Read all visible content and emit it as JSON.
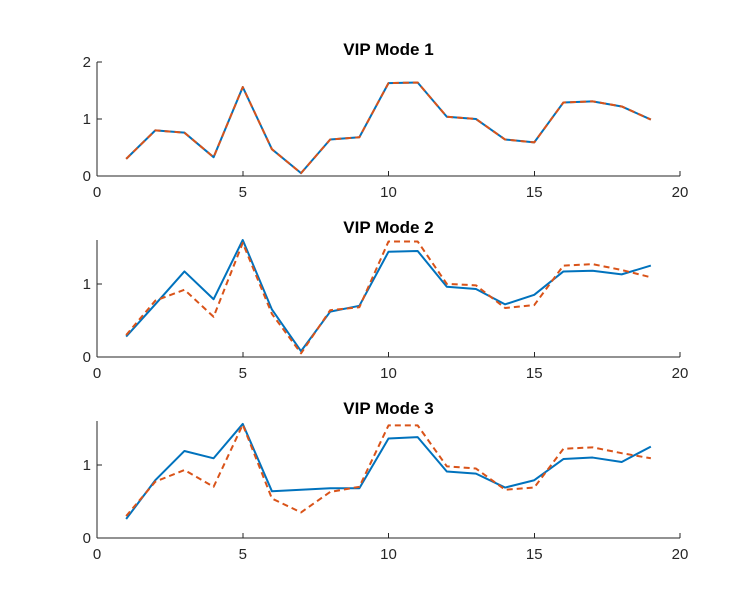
{
  "chart_data": [
    {
      "type": "line",
      "title": "VIP Mode 1",
      "xlim": [
        0,
        20
      ],
      "ylim": [
        0,
        2
      ],
      "xticks": [
        0,
        5,
        10,
        15,
        20
      ],
      "yticks": [
        0,
        1,
        2
      ],
      "x": [
        1,
        2,
        3,
        4,
        5,
        6,
        7,
        8,
        9,
        10,
        11,
        12,
        13,
        14,
        15,
        16,
        17,
        18,
        19
      ],
      "series": [
        {
          "style": "solid",
          "color": "#0072BD",
          "values": [
            0.3,
            0.8,
            0.76,
            0.33,
            1.56,
            0.47,
            0.05,
            0.64,
            0.68,
            1.63,
            1.64,
            1.04,
            1.0,
            0.64,
            0.59,
            1.29,
            1.31,
            1.22,
            0.99
          ]
        },
        {
          "style": "dashed",
          "color": "#D95319",
          "values": [
            0.3,
            0.8,
            0.76,
            0.33,
            1.56,
            0.47,
            0.05,
            0.64,
            0.68,
            1.63,
            1.64,
            1.04,
            1.0,
            0.64,
            0.59,
            1.29,
            1.31,
            1.22,
            0.99
          ]
        }
      ]
    },
    {
      "type": "line",
      "title": "VIP Mode 2",
      "xlim": [
        0,
        20
      ],
      "ylim": [
        0,
        1.6
      ],
      "xticks": [
        0,
        5,
        10,
        15,
        20
      ],
      "yticks": [
        0,
        1
      ],
      "x": [
        1,
        2,
        3,
        4,
        5,
        6,
        7,
        8,
        9,
        10,
        11,
        12,
        13,
        14,
        15,
        16,
        17,
        18,
        19
      ],
      "series": [
        {
          "style": "solid",
          "color": "#0072BD",
          "values": [
            0.28,
            0.72,
            1.17,
            0.79,
            1.6,
            0.65,
            0.08,
            0.62,
            0.7,
            1.44,
            1.45,
            0.96,
            0.93,
            0.72,
            0.85,
            1.17,
            1.18,
            1.13,
            1.25
          ]
        },
        {
          "style": "dashed",
          "color": "#D95319",
          "values": [
            0.3,
            0.77,
            0.92,
            0.55,
            1.56,
            0.59,
            0.05,
            0.64,
            0.68,
            1.58,
            1.58,
            1.0,
            0.98,
            0.67,
            0.71,
            1.25,
            1.27,
            1.19,
            1.09
          ]
        }
      ]
    },
    {
      "type": "line",
      "title": "VIP Mode 3",
      "xlim": [
        0,
        20
      ],
      "ylim": [
        0,
        1.6
      ],
      "xticks": [
        0,
        5,
        10,
        15,
        20
      ],
      "yticks": [
        0,
        1
      ],
      "x": [
        1,
        2,
        3,
        4,
        5,
        6,
        7,
        8,
        9,
        10,
        11,
        12,
        13,
        14,
        15,
        16,
        17,
        18,
        19
      ],
      "series": [
        {
          "style": "solid",
          "color": "#0072BD",
          "values": [
            0.26,
            0.79,
            1.19,
            1.09,
            1.56,
            0.64,
            0.66,
            0.68,
            0.68,
            1.36,
            1.38,
            0.91,
            0.88,
            0.69,
            0.79,
            1.08,
            1.1,
            1.04,
            1.25
          ]
        },
        {
          "style": "dashed",
          "color": "#D95319",
          "values": [
            0.3,
            0.77,
            0.93,
            0.7,
            1.55,
            0.54,
            0.35,
            0.63,
            0.7,
            1.54,
            1.54,
            0.98,
            0.95,
            0.66,
            0.69,
            1.22,
            1.24,
            1.16,
            1.09
          ]
        }
      ]
    }
  ]
}
